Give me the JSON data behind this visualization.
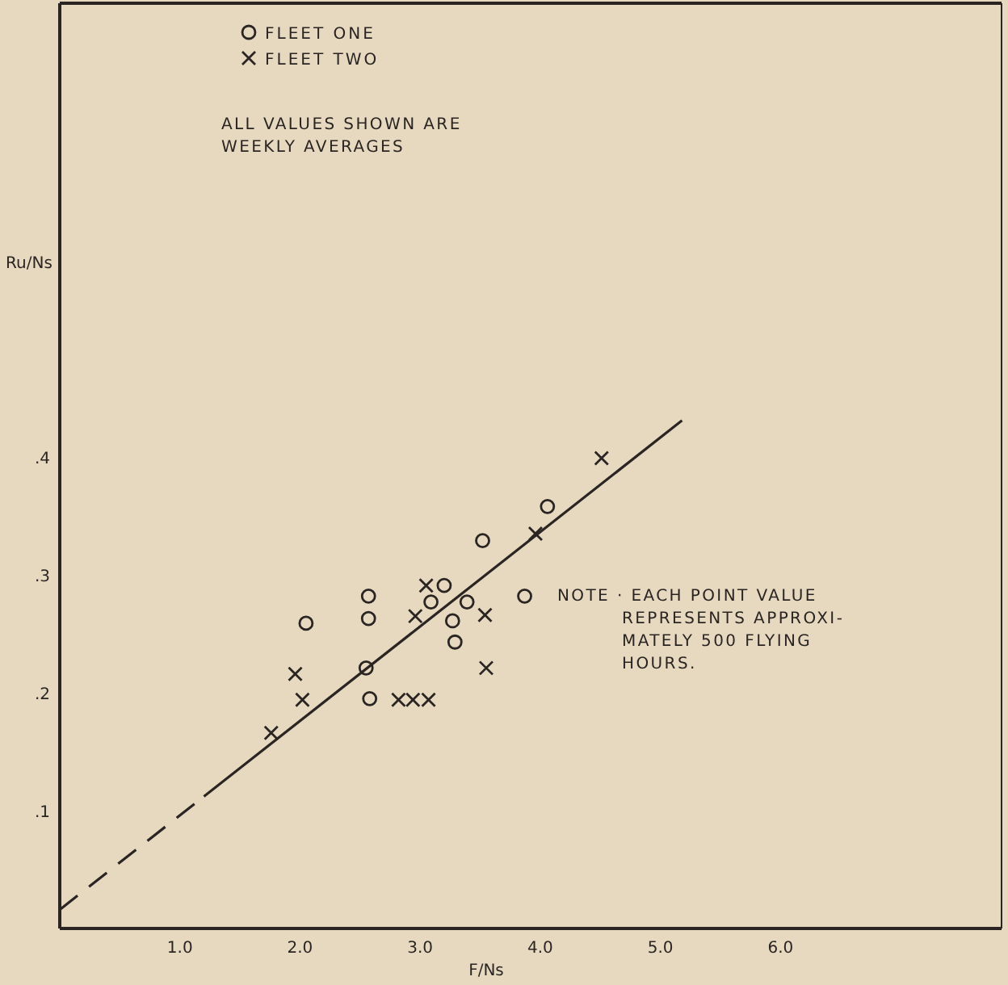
{
  "chart_data": {
    "type": "scatter",
    "xlabel": "F/Ns",
    "ylabel": "Ru/Ns",
    "xlim": [
      0,
      7.84
    ],
    "ylim": [
      0,
      0.785
    ],
    "xticks": [
      {
        "value": 1,
        "label": "1.0"
      },
      {
        "value": 2,
        "label": "2.0"
      },
      {
        "value": 3,
        "label": "3.0"
      },
      {
        "value": 4,
        "label": "4.0"
      },
      {
        "value": 5,
        "label": "5.0"
      },
      {
        "value": 6,
        "label": "6.0"
      }
    ],
    "yticks": [
      {
        "value": 0.1,
        "label": ".1"
      },
      {
        "value": 0.2,
        "label": ".2"
      },
      {
        "value": 0.3,
        "label": ".3"
      },
      {
        "value": 0.4,
        "label": ".4"
      }
    ],
    "grid": false,
    "legend": "top left",
    "series": [
      {
        "name": "FLEET ONE",
        "marker": "circle",
        "color": "#2a2522",
        "x": [
          2.05,
          2.57,
          2.57,
          2.55,
          2.58,
          3.2,
          3.09,
          3.27,
          3.29,
          3.39,
          3.52,
          3.87,
          4.06
        ],
        "values": [
          0.259,
          0.282,
          0.263,
          0.221,
          0.195,
          0.291,
          0.277,
          0.261,
          0.243,
          0.277,
          0.329,
          0.282,
          0.358
        ]
      },
      {
        "name": "FLEET TWO",
        "marker": "cross",
        "color": "#2a2522",
        "x": [
          1.96,
          2.02,
          1.76,
          2.82,
          2.94,
          3.07,
          2.96,
          3.05,
          3.54,
          3.55,
          3.96,
          4.51
        ],
        "values": [
          0.216,
          0.194,
          0.166,
          0.194,
          0.194,
          0.194,
          0.265,
          0.291,
          0.266,
          0.221,
          0.335,
          0.399
        ]
      },
      {
        "type": "line",
        "line_style": "dashed",
        "color": "#2a2522",
        "x": [
          0,
          1.2
        ],
        "values": [
          0.016,
          0.112
        ]
      },
      {
        "type": "line",
        "line_style": "solid",
        "color": "#2a2522",
        "x": [
          1.2,
          5.18
        ],
        "values": [
          0.112,
          0.431
        ]
      }
    ],
    "annotations": [
      "ALL VALUES SHOWN ARE\nWEEKLY AVERAGES",
      "NOTE · EACH POINT VALUE\nREPRESENTS APPROXI-\nMATELY 500 FLYING\nHOURS."
    ]
  }
}
